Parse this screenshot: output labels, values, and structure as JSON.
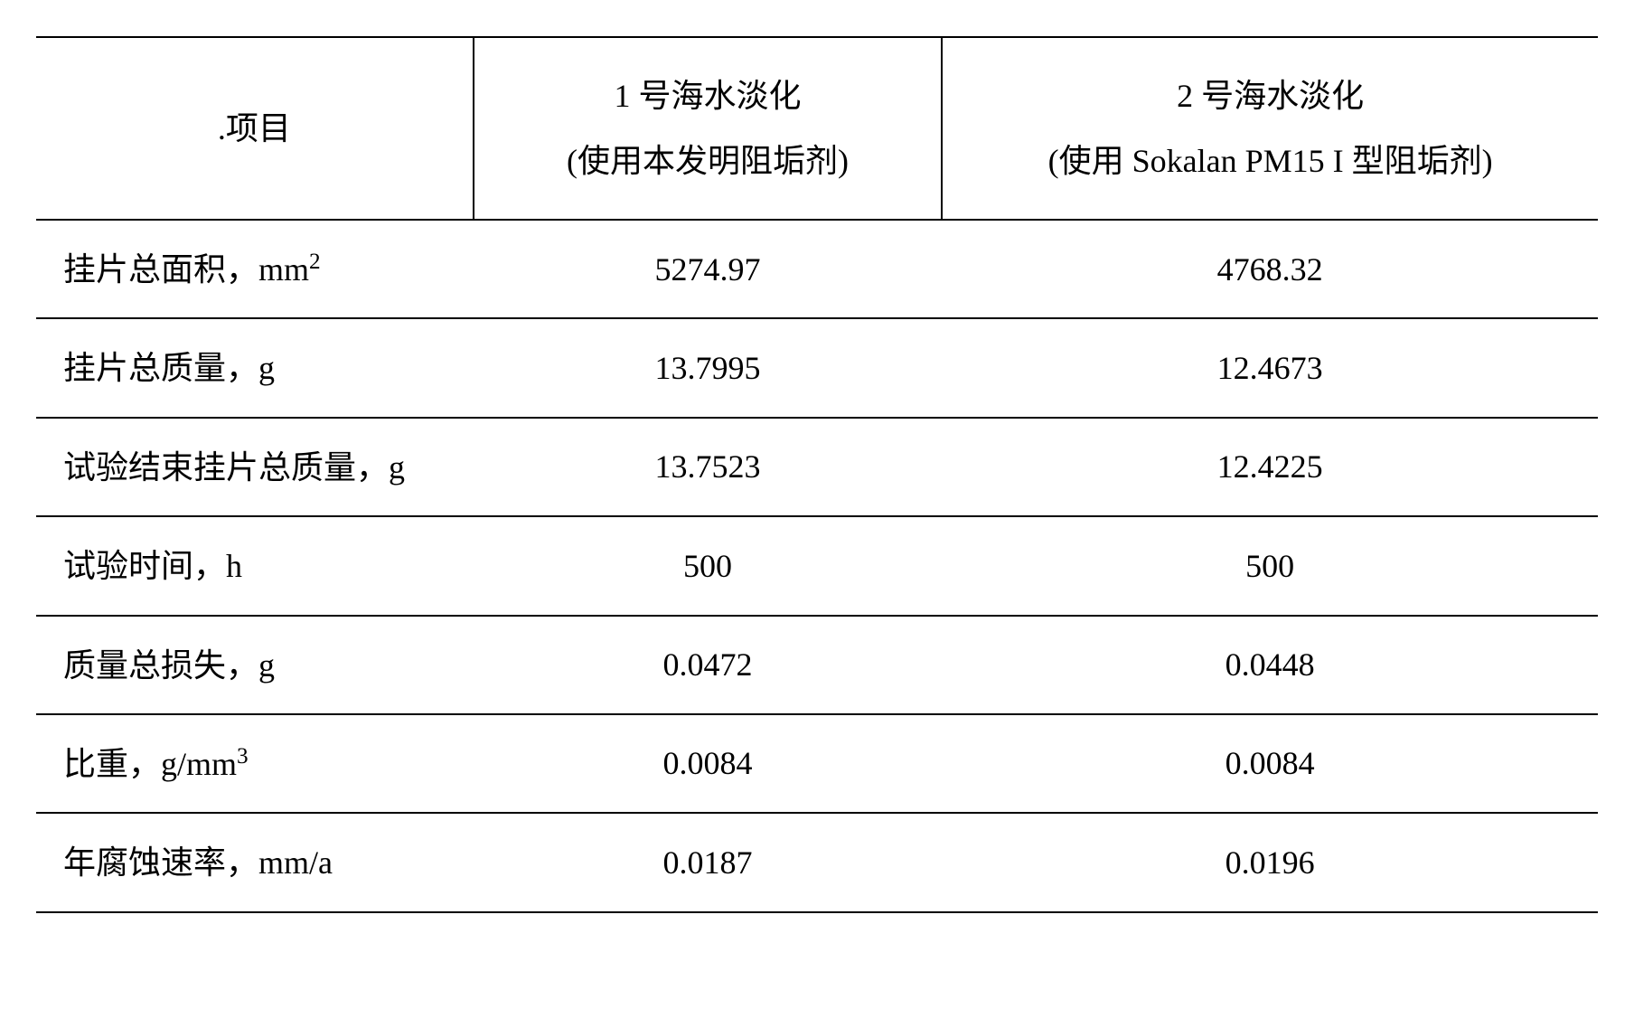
{
  "table": {
    "text_color": "#000000",
    "border_color": "#000000",
    "background_color": "#ffffff",
    "font_family": "Times New Roman, SimSun, serif",
    "header_fontsize": 36,
    "body_fontsize": 36,
    "border_width": 2,
    "column_widths_pct": [
      28,
      30,
      42
    ],
    "headers": {
      "col0": ".项目",
      "col1_line1": "1 号海水淡化",
      "col1_line2": "(使用本发明阻垢剂)",
      "col2_line1": "2 号海水淡化",
      "col2_line2": "(使用 Sokalan PM15 I 型阻垢剂)"
    },
    "rows": [
      {
        "label_pre": "挂片总面积，mm",
        "label_sup": "2",
        "label_post": "",
        "v1": "5274.97",
        "v2": "4768.32"
      },
      {
        "label_pre": "挂片总质量，g",
        "label_sup": "",
        "label_post": "",
        "v1": "13.7995",
        "v2": "12.4673"
      },
      {
        "label_pre": "试验结束挂片总质量，g",
        "label_sup": "",
        "label_post": "",
        "v1": "13.7523",
        "v2": "12.4225"
      },
      {
        "label_pre": "试验时间，h",
        "label_sup": "",
        "label_post": "",
        "v1": "500",
        "v2": "500"
      },
      {
        "label_pre": "质量总损失，g",
        "label_sup": "",
        "label_post": "",
        "v1": "0.0472",
        "v2": "0.0448"
      },
      {
        "label_pre": "比重，g/mm",
        "label_sup": "3",
        "label_post": "",
        "v1": "0.0084",
        "v2": "0.0084"
      },
      {
        "label_pre": "年腐蚀速率，mm/a",
        "label_sup": "",
        "label_post": "",
        "v1": "0.0187",
        "v2": "0.0196"
      }
    ]
  }
}
